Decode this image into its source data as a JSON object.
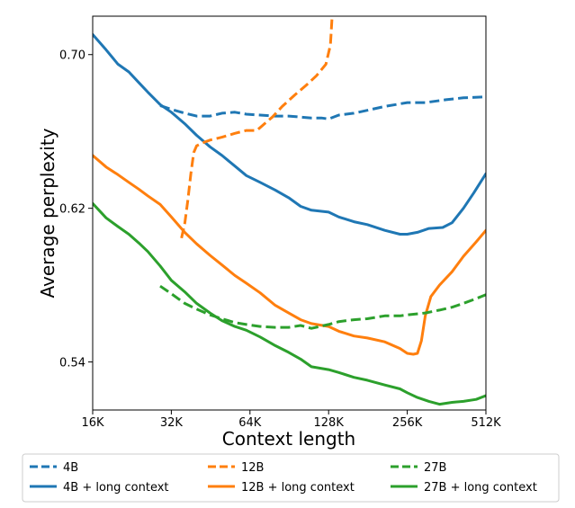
{
  "chart_data": {
    "type": "line",
    "title": "",
    "xlabel": "Context length",
    "ylabel": "Average perplexity",
    "x_scale": "log2",
    "xlim": [
      16,
      512
    ],
    "ylim": [
      0.515,
      0.72
    ],
    "x_ticks": [
      16,
      32,
      64,
      128,
      256,
      512
    ],
    "x_tick_labels": [
      "16K",
      "32K",
      "64K",
      "128K",
      "256K",
      "512K"
    ],
    "y_ticks": [
      0.54,
      0.62,
      0.7
    ],
    "y_tick_labels": [
      "0.54",
      "0.62",
      "0.70"
    ],
    "grid": false,
    "legend_position": "bottom",
    "colors": {
      "blue": "#1f77b4",
      "orange": "#ff7f0e",
      "green": "#2ca02c"
    },
    "series": [
      {
        "name": "4B",
        "color": "#1f77b4",
        "style": "dashed",
        "points": [
          [
            29,
            0.6735
          ],
          [
            32,
            0.6715
          ],
          [
            36,
            0.6695
          ],
          [
            40,
            0.668
          ],
          [
            45,
            0.668
          ],
          [
            50,
            0.6695
          ],
          [
            56,
            0.67
          ],
          [
            62,
            0.669
          ],
          [
            70,
            0.6685
          ],
          [
            80,
            0.668
          ],
          [
            90,
            0.668
          ],
          [
            100,
            0.6675
          ],
          [
            110,
            0.667
          ],
          [
            120,
            0.667
          ],
          [
            128,
            0.6665
          ],
          [
            140,
            0.6685
          ],
          [
            160,
            0.6695
          ],
          [
            180,
            0.671
          ],
          [
            210,
            0.673
          ],
          [
            256,
            0.675
          ],
          [
            300,
            0.675
          ],
          [
            360,
            0.6765
          ],
          [
            420,
            0.6775
          ],
          [
            512,
            0.678
          ]
        ]
      },
      {
        "name": "4B + long context",
        "color": "#1f77b4",
        "style": "solid",
        "points": [
          [
            16,
            0.7105
          ],
          [
            18,
            0.7025
          ],
          [
            20,
            0.695
          ],
          [
            22,
            0.691
          ],
          [
            24,
            0.6855
          ],
          [
            26,
            0.6805
          ],
          [
            29,
            0.674
          ],
          [
            32,
            0.67
          ],
          [
            36,
            0.664
          ],
          [
            40,
            0.658
          ],
          [
            45,
            0.652
          ],
          [
            50,
            0.6475
          ],
          [
            56,
            0.642
          ],
          [
            62,
            0.637
          ],
          [
            70,
            0.6335
          ],
          [
            80,
            0.6295
          ],
          [
            90,
            0.6255
          ],
          [
            100,
            0.621
          ],
          [
            110,
            0.619
          ],
          [
            128,
            0.618
          ],
          [
            140,
            0.6155
          ],
          [
            160,
            0.613
          ],
          [
            180,
            0.6115
          ],
          [
            210,
            0.6085
          ],
          [
            240,
            0.6065
          ],
          [
            256,
            0.6065
          ],
          [
            280,
            0.6075
          ],
          [
            310,
            0.6095
          ],
          [
            350,
            0.61
          ],
          [
            380,
            0.6125
          ],
          [
            420,
            0.62
          ],
          [
            460,
            0.628
          ],
          [
            512,
            0.638
          ]
        ]
      },
      {
        "name": "12B",
        "color": "#ff7f0e",
        "style": "dashed",
        "points": [
          [
            35,
            0.6045
          ],
          [
            36,
            0.612
          ],
          [
            37,
            0.624
          ],
          [
            38,
            0.638
          ],
          [
            39,
            0.649
          ],
          [
            40,
            0.6525
          ],
          [
            42,
            0.654
          ],
          [
            45,
            0.6555
          ],
          [
            50,
            0.657
          ],
          [
            56,
            0.659
          ],
          [
            62,
            0.6605
          ],
          [
            68,
            0.6605
          ],
          [
            72,
            0.6635
          ],
          [
            78,
            0.6675
          ],
          [
            85,
            0.673
          ],
          [
            95,
            0.679
          ],
          [
            105,
            0.684
          ],
          [
            115,
            0.689
          ],
          [
            125,
            0.695
          ],
          [
            130,
            0.705
          ],
          [
            132,
            0.72
          ]
        ]
      },
      {
        "name": "12B + long context",
        "color": "#ff7f0e",
        "style": "solid",
        "points": [
          [
            16,
            0.6475
          ],
          [
            18,
            0.6415
          ],
          [
            20,
            0.6375
          ],
          [
            22,
            0.6335
          ],
          [
            24,
            0.63
          ],
          [
            26,
            0.6265
          ],
          [
            29,
            0.622
          ],
          [
            32,
            0.6155
          ],
          [
            36,
            0.6075
          ],
          [
            40,
            0.6015
          ],
          [
            45,
            0.5955
          ],
          [
            50,
            0.5905
          ],
          [
            56,
            0.585
          ],
          [
            62,
            0.581
          ],
          [
            70,
            0.576
          ],
          [
            80,
            0.5695
          ],
          [
            90,
            0.5655
          ],
          [
            100,
            0.562
          ],
          [
            110,
            0.56
          ],
          [
            128,
            0.5585
          ],
          [
            140,
            0.556
          ],
          [
            160,
            0.5535
          ],
          [
            180,
            0.5525
          ],
          [
            210,
            0.5505
          ],
          [
            240,
            0.547
          ],
          [
            256,
            0.5445
          ],
          [
            270,
            0.544
          ],
          [
            280,
            0.5445
          ],
          [
            290,
            0.551
          ],
          [
            300,
            0.564
          ],
          [
            315,
            0.574
          ],
          [
            340,
            0.58
          ],
          [
            380,
            0.587
          ],
          [
            420,
            0.595
          ],
          [
            470,
            0.6025
          ],
          [
            512,
            0.6085
          ]
        ]
      },
      {
        "name": "27B",
        "color": "#2ca02c",
        "style": "dashed",
        "points": [
          [
            29,
            0.5795
          ],
          [
            32,
            0.5755
          ],
          [
            36,
            0.5705
          ],
          [
            40,
            0.5675
          ],
          [
            45,
            0.5645
          ],
          [
            50,
            0.5625
          ],
          [
            56,
            0.5605
          ],
          [
            62,
            0.5595
          ],
          [
            70,
            0.5585
          ],
          [
            80,
            0.558
          ],
          [
            90,
            0.558
          ],
          [
            100,
            0.559
          ],
          [
            110,
            0.5575
          ],
          [
            128,
            0.5595
          ],
          [
            140,
            0.561
          ],
          [
            160,
            0.562
          ],
          [
            180,
            0.5625
          ],
          [
            210,
            0.564
          ],
          [
            240,
            0.564
          ],
          [
            256,
            0.5645
          ],
          [
            300,
            0.5655
          ],
          [
            340,
            0.567
          ],
          [
            380,
            0.5685
          ],
          [
            420,
            0.5705
          ],
          [
            470,
            0.573
          ],
          [
            512,
            0.575
          ]
        ]
      },
      {
        "name": "27B + long context",
        "color": "#2ca02c",
        "style": "solid",
        "points": [
          [
            16,
            0.6225
          ],
          [
            18,
            0.615
          ],
          [
            20,
            0.6105
          ],
          [
            22,
            0.6065
          ],
          [
            24,
            0.602
          ],
          [
            26,
            0.5975
          ],
          [
            29,
            0.59
          ],
          [
            32,
            0.5825
          ],
          [
            36,
            0.5765
          ],
          [
            40,
            0.5705
          ],
          [
            45,
            0.5655
          ],
          [
            50,
            0.5615
          ],
          [
            56,
            0.5585
          ],
          [
            62,
            0.5565
          ],
          [
            70,
            0.553
          ],
          [
            80,
            0.5485
          ],
          [
            90,
            0.545
          ],
          [
            100,
            0.5415
          ],
          [
            110,
            0.5375
          ],
          [
            128,
            0.536
          ],
          [
            140,
            0.5345
          ],
          [
            160,
            0.532
          ],
          [
            180,
            0.5305
          ],
          [
            210,
            0.528
          ],
          [
            240,
            0.526
          ],
          [
            256,
            0.524
          ],
          [
            280,
            0.5215
          ],
          [
            310,
            0.5195
          ],
          [
            340,
            0.518
          ],
          [
            380,
            0.519
          ],
          [
            420,
            0.5195
          ],
          [
            470,
            0.5205
          ],
          [
            512,
            0.5225
          ]
        ]
      }
    ],
    "legend": [
      {
        "label": "4B",
        "series": 0
      },
      {
        "label": "12B",
        "series": 2
      },
      {
        "label": "27B",
        "series": 4
      },
      {
        "label": "4B + long context",
        "series": 1
      },
      {
        "label": "12B + long context",
        "series": 3
      },
      {
        "label": "27B + long context",
        "series": 5
      }
    ]
  }
}
